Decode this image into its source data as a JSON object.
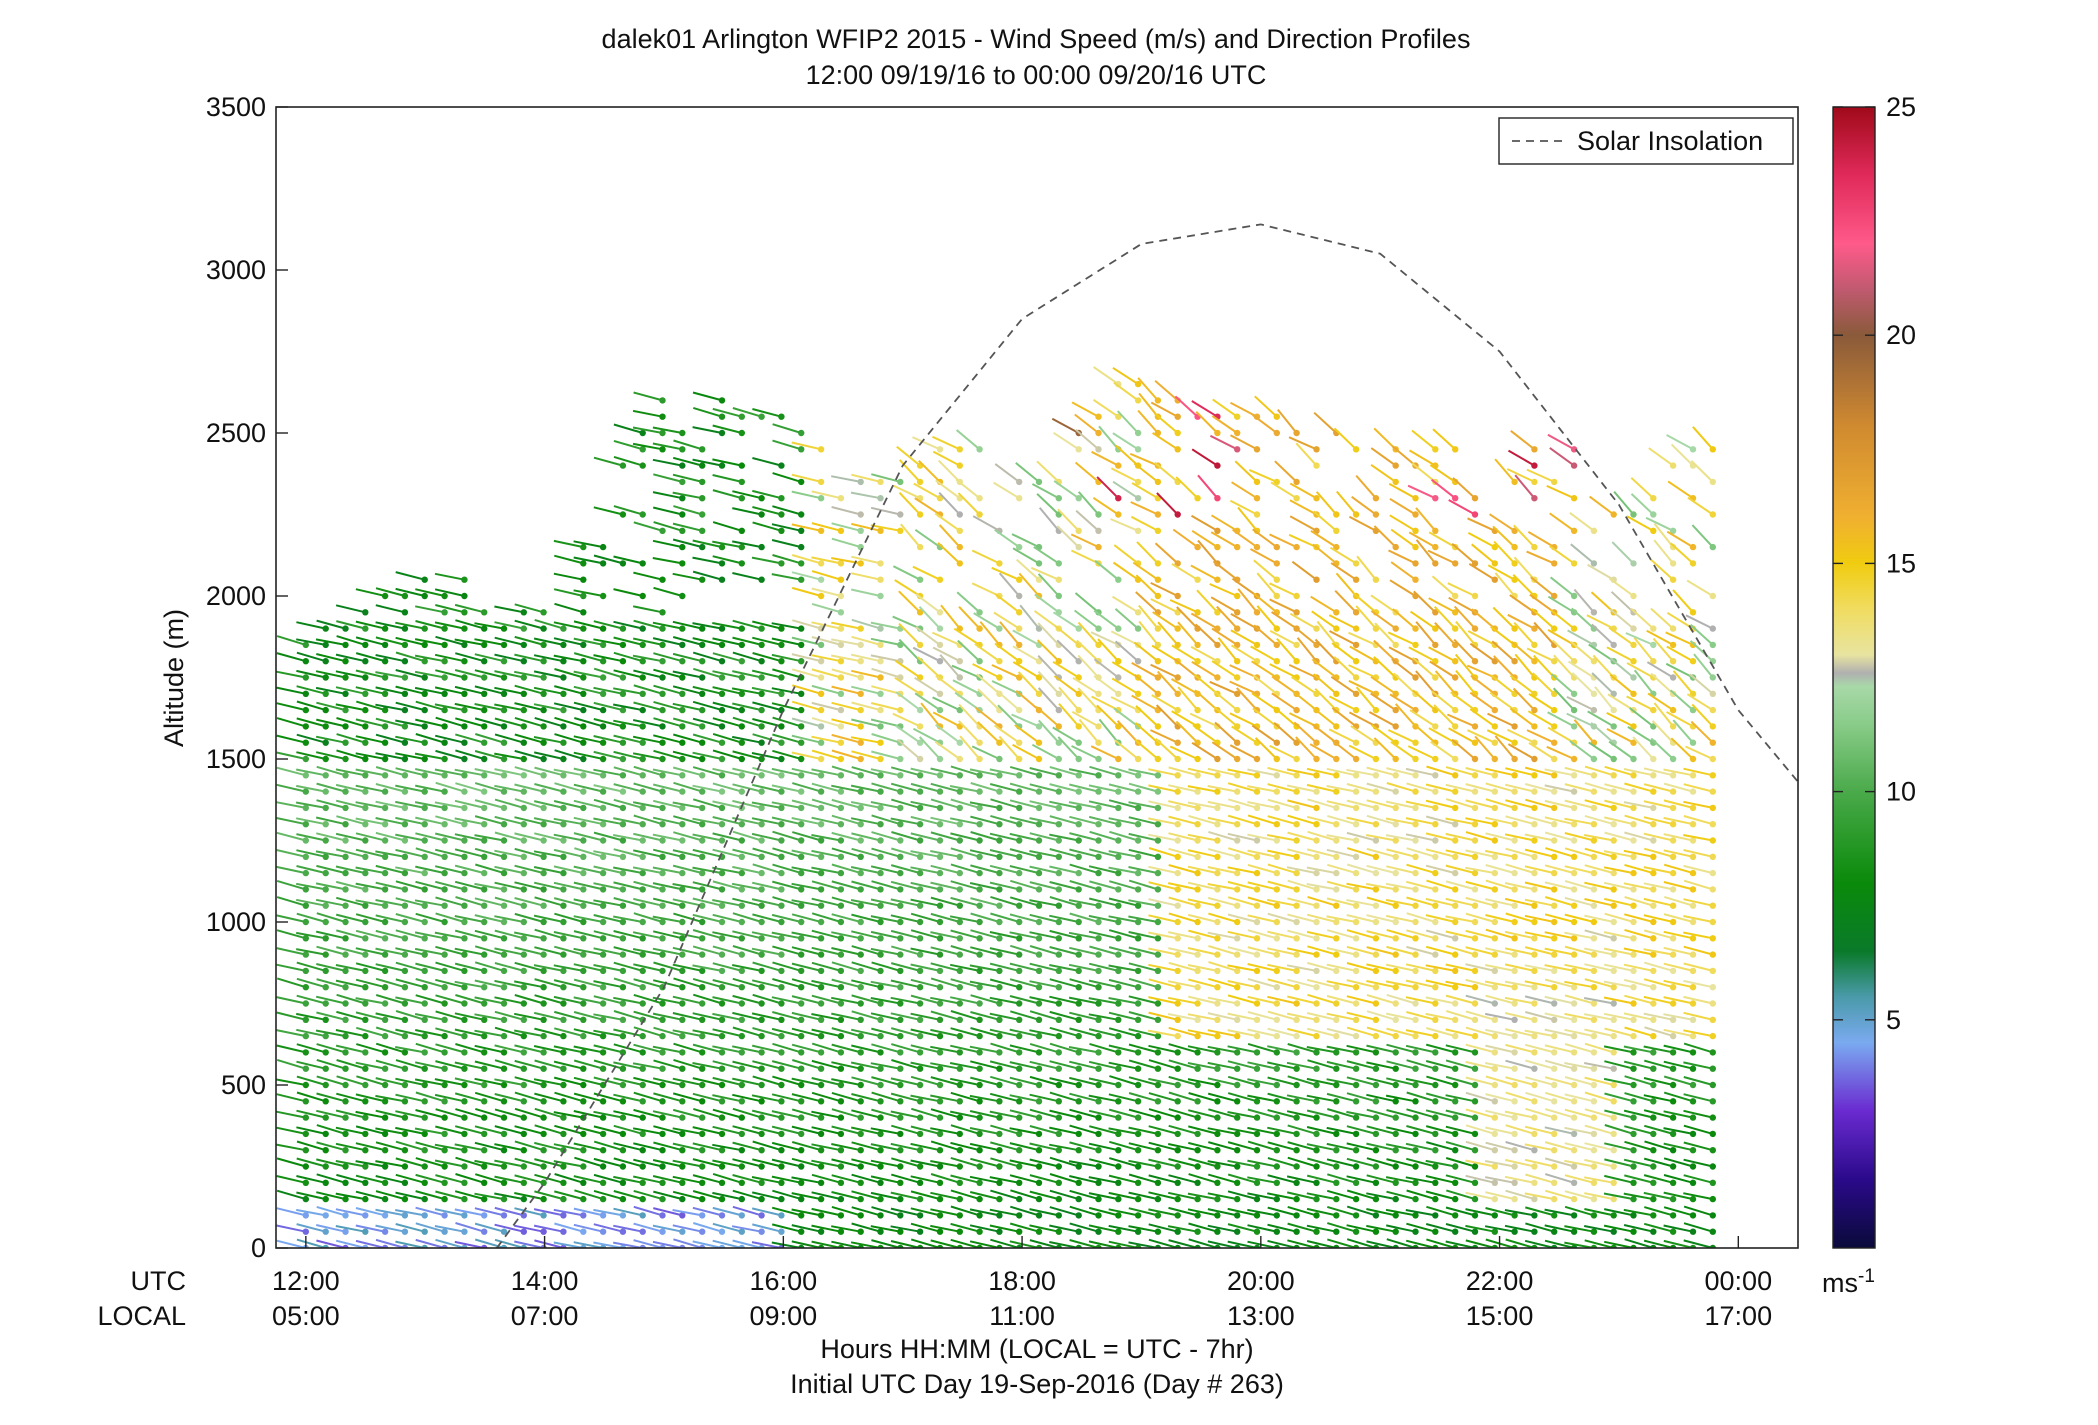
{
  "chart_data": {
    "type": "wind-barb-profile",
    "title": "dalek01 Arlington WFIP2 2015 - Wind Speed (m/s) and Direction Profiles",
    "subtitle": "12:00 09/19/16 to 00:00 09/20/16  UTC",
    "ylabel": "Altitude (m)",
    "ylim": [
      0,
      3500
    ],
    "y_ticks": [
      "0",
      "500",
      "1000",
      "1500",
      "2000",
      "2500",
      "3000",
      "3500"
    ],
    "y_tick_values": [
      0,
      500,
      1000,
      1500,
      2000,
      2500,
      3000,
      3500
    ],
    "x_row_labels": {
      "utc": "UTC",
      "local": "LOCAL"
    },
    "xlim_hours_utc": [
      11.75,
      24.5
    ],
    "x_tick_hours_utc": [
      12,
      14,
      16,
      18,
      20,
      22,
      24
    ],
    "x_ticks_utc": [
      "12:00",
      "14:00",
      "16:00",
      "18:00",
      "20:00",
      "22:00",
      "00:00"
    ],
    "x_ticks_local": [
      "05:00",
      "07:00",
      "09:00",
      "11:00",
      "13:00",
      "15:00",
      "17:00"
    ],
    "xlabel": "Hours HH:MM  (LOCAL = UTC - 7hr)",
    "xlabel2": "Initial UTC Day 19-Sep-2016 (Day # 263)",
    "legend": {
      "label": "Solar Insolation",
      "position": "top-right",
      "style": "dashed",
      "color": "#555555"
    },
    "colorbar": {
      "min": 0,
      "max": 25,
      "ticks": [
        "5",
        "10",
        "15",
        "20",
        "25"
      ],
      "tick_values": [
        5,
        10,
        15,
        20,
        25
      ],
      "unit_label": "ms",
      "unit_exponent": "-1",
      "stops": [
        [
          0,
          "#0a0a3a"
        ],
        [
          1.5,
          "#2a0a8a"
        ],
        [
          3,
          "#6a2ad0"
        ],
        [
          4.5,
          "#7aaaf0"
        ],
        [
          5.5,
          "#4a9aaa"
        ],
        [
          6.5,
          "#0a7a2a"
        ],
        [
          8,
          "#0a8a0a"
        ],
        [
          10,
          "#4aaa4a"
        ],
        [
          11.5,
          "#8acc8a"
        ],
        [
          12.3,
          "#a8d8a8"
        ],
        [
          12.6,
          "#b0b0b0"
        ],
        [
          13,
          "#e8e4a0"
        ],
        [
          14,
          "#f0dc60"
        ],
        [
          15,
          "#f0cc10"
        ],
        [
          16,
          "#f0b030"
        ],
        [
          18,
          "#d08a30"
        ],
        [
          20,
          "#8a5a3a"
        ],
        [
          21,
          "#c05a70"
        ],
        [
          22,
          "#ff5a8a"
        ],
        [
          23.5,
          "#e02a5a"
        ],
        [
          25,
          "#a00a1a"
        ]
      ]
    },
    "solar_insolation_curve": {
      "x_hours_utc": [
        13.6,
        14.0,
        15.0,
        16.0,
        17.0,
        18.0,
        19.0,
        20.0,
        21.0,
        22.0,
        23.0,
        24.0,
        24.5
      ],
      "altitude_equiv_m": [
        0,
        200,
        800,
        1650,
        2400,
        2850,
        3080,
        3140,
        3050,
        2750,
        2280,
        1650,
        1430
      ]
    },
    "barbs": {
      "time_step_hours": 0.166,
      "time_start_hours_utc": 12.0,
      "time_end_hours_utc": 23.9,
      "height_step_m": 50,
      "lowest_height_m": 0,
      "profile_top_m": [
        [
          12.0,
          1890
        ],
        [
          12.5,
          1980
        ],
        [
          13.0,
          2120
        ],
        [
          14.0,
          1970
        ],
        [
          14.5,
          2320
        ],
        [
          15.0,
          2660
        ],
        [
          15.5,
          2620
        ],
        [
          16.0,
          2550
        ],
        [
          16.5,
          2400
        ],
        [
          17.0,
          2380
        ],
        [
          17.5,
          2500
        ],
        [
          18.0,
          2380
        ],
        [
          18.5,
          2520
        ],
        [
          19.0,
          2740
        ],
        [
          19.5,
          2580
        ],
        [
          20.0,
          2560
        ],
        [
          20.5,
          2550
        ],
        [
          21.0,
          2460
        ],
        [
          21.5,
          2530
        ],
        [
          22.0,
          2280
        ],
        [
          22.5,
          2600
        ],
        [
          23.0,
          2240
        ],
        [
          23.5,
          2560
        ],
        [
          23.9,
          2450
        ]
      ],
      "speed_regions_note": "speeds in m/s: ~3-5 near surface early; ~7-10 green below 1500 m; 12-17 yellow/orange aloft after 18 UTC; isolated 20-25 above 2200 m"
    }
  }
}
